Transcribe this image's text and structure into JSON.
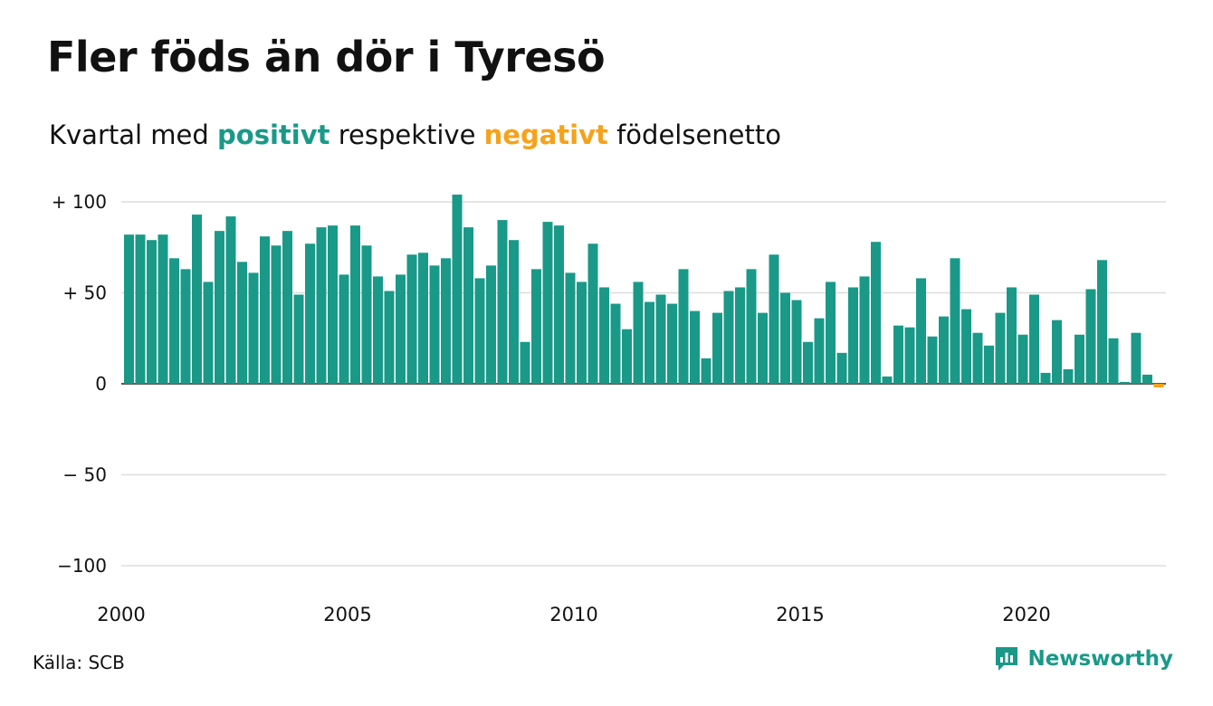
{
  "header": {
    "title": "Fler föds än dör i Tyresö",
    "subtitle_prefix": "Kvartal med",
    "subtitle_positive": "positivt",
    "subtitle_middle": "respektive",
    "subtitle_negative": "negativt",
    "subtitle_suffix": "födelsenetto"
  },
  "footer": {
    "source": "Källa: SCB",
    "brand": "Newsworthy",
    "brand_icon": "newsworthy-logo-icon"
  },
  "colors": {
    "positive": "#1a9988",
    "negative": "#f5a21c",
    "grid": "#dddddd",
    "zero_line": "#222222"
  },
  "chart_data": {
    "type": "bar",
    "title": "Fler föds än dör i Tyresö",
    "subtitle": "Kvartal med positivt respektive negativt födelsenetto",
    "xlabel": "",
    "ylabel": "",
    "ylim": [
      -100,
      100
    ],
    "yticks": [
      100,
      50,
      0,
      -50,
      -100
    ],
    "ytick_labels": [
      "+ 100",
      "+  50",
      "0",
      "− 50",
      "−100"
    ],
    "xticks": [
      "2000",
      "2005",
      "2010",
      "2015",
      "2020"
    ],
    "grid": true,
    "legend": "none",
    "series": [
      {
        "values": [
          82,
          82,
          79,
          82,
          69,
          63,
          93,
          56,
          84,
          92,
          67,
          61,
          81,
          76,
          84,
          49,
          77,
          86,
          87,
          60,
          87,
          76,
          59,
          51,
          60,
          71,
          72,
          65,
          69,
          104,
          86,
          58,
          65,
          90,
          79,
          23,
          63,
          89,
          87,
          61,
          56,
          77,
          53,
          44,
          30,
          56,
          45,
          49,
          44,
          63,
          40,
          14,
          39,
          51,
          53,
          63,
          39,
          71,
          50,
          46,
          23,
          36,
          56,
          17,
          53,
          59,
          78,
          4,
          32,
          31,
          58,
          26,
          37,
          69,
          41,
          28,
          21,
          39,
          53,
          27,
          49,
          6,
          35,
          8,
          27,
          52,
          68,
          25,
          1,
          28,
          5,
          -2
        ]
      }
    ]
  }
}
